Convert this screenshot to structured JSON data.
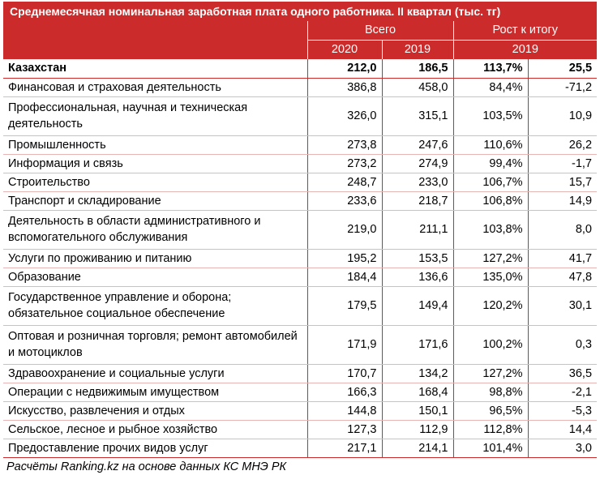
{
  "title": "Среднемесячная номинальная заработная плата одного работника. II квартал (тыс. тг)",
  "header": {
    "group_total": "Всего",
    "group_growth": "Рост к итогу",
    "year_2020": "2020",
    "year_2019": "2019",
    "growth_year": "2019"
  },
  "total": {
    "name": "Казахстан",
    "v2020": "212,0",
    "v2019": "186,5",
    "pct": "113,7%",
    "diff": "25,5"
  },
  "rows": [
    {
      "name": "Финансовая и страховая деятельность",
      "v2020": "386,8",
      "v2019": "458,0",
      "pct": "84,4%",
      "diff": "-71,2"
    },
    {
      "name": "Профессиональная, научная и техническая деятельность",
      "v2020": "326,0",
      "v2019": "315,1",
      "pct": "103,5%",
      "diff": "10,9"
    },
    {
      "name": "Промышленность",
      "v2020": "273,8",
      "v2019": "247,6",
      "pct": "110,6%",
      "diff": "26,2"
    },
    {
      "name": "Информация и связь",
      "v2020": "273,2",
      "v2019": "274,9",
      "pct": "99,4%",
      "diff": "-1,7"
    },
    {
      "name": "Строительство",
      "v2020": "248,7",
      "v2019": "233,0",
      "pct": "106,7%",
      "diff": "15,7"
    },
    {
      "name": "Транспорт и складирование",
      "v2020": "233,6",
      "v2019": "218,7",
      "pct": "106,8%",
      "diff": "14,9"
    },
    {
      "name": "Деятельность в области административного и вспомогательного обслуживания",
      "v2020": "219,0",
      "v2019": "211,1",
      "pct": "103,8%",
      "diff": "8,0"
    },
    {
      "name": "Услуги по проживанию и питанию",
      "v2020": "195,2",
      "v2019": "153,5",
      "pct": "127,2%",
      "diff": "41,7"
    },
    {
      "name": "Образование",
      "v2020": "184,4",
      "v2019": "136,6",
      "pct": "135,0%",
      "diff": "47,8"
    },
    {
      "name": "Государственное управление и оборона; обязательное социальное обеспечение",
      "v2020": "179,5",
      "v2019": "149,4",
      "pct": "120,2%",
      "diff": "30,1"
    },
    {
      "name": "Оптовая и розничная торговля; ремонт автомобилей и мотоциклов",
      "v2020": "171,9",
      "v2019": "171,6",
      "pct": "100,2%",
      "diff": "0,3"
    },
    {
      "name": "Здравоохранение и социальные услуги",
      "v2020": "170,7",
      "v2019": "134,2",
      "pct": "127,2%",
      "diff": "36,5"
    },
    {
      "name": "Операции с недвижимым имуществом",
      "v2020": "166,3",
      "v2019": "168,4",
      "pct": "98,8%",
      "diff": "-2,1"
    },
    {
      "name": "Искусство, развлечения и отдых",
      "v2020": "144,8",
      "v2019": "150,1",
      "pct": "96,5%",
      "diff": "-5,3"
    },
    {
      "name": "Сельское, лесное и рыбное хозяйство",
      "v2020": "127,3",
      "v2019": "112,9",
      "pct": "112,8%",
      "diff": "14,4"
    },
    {
      "name": "Предоставление прочих видов услуг",
      "v2020": "217,1",
      "v2019": "214,1",
      "pct": "101,4%",
      "diff": "3,0"
    }
  ],
  "source_note": "Расчёты Ranking.kz на основе данных КС МНЭ РК",
  "colors": {
    "accent": "#cc2b2b"
  }
}
